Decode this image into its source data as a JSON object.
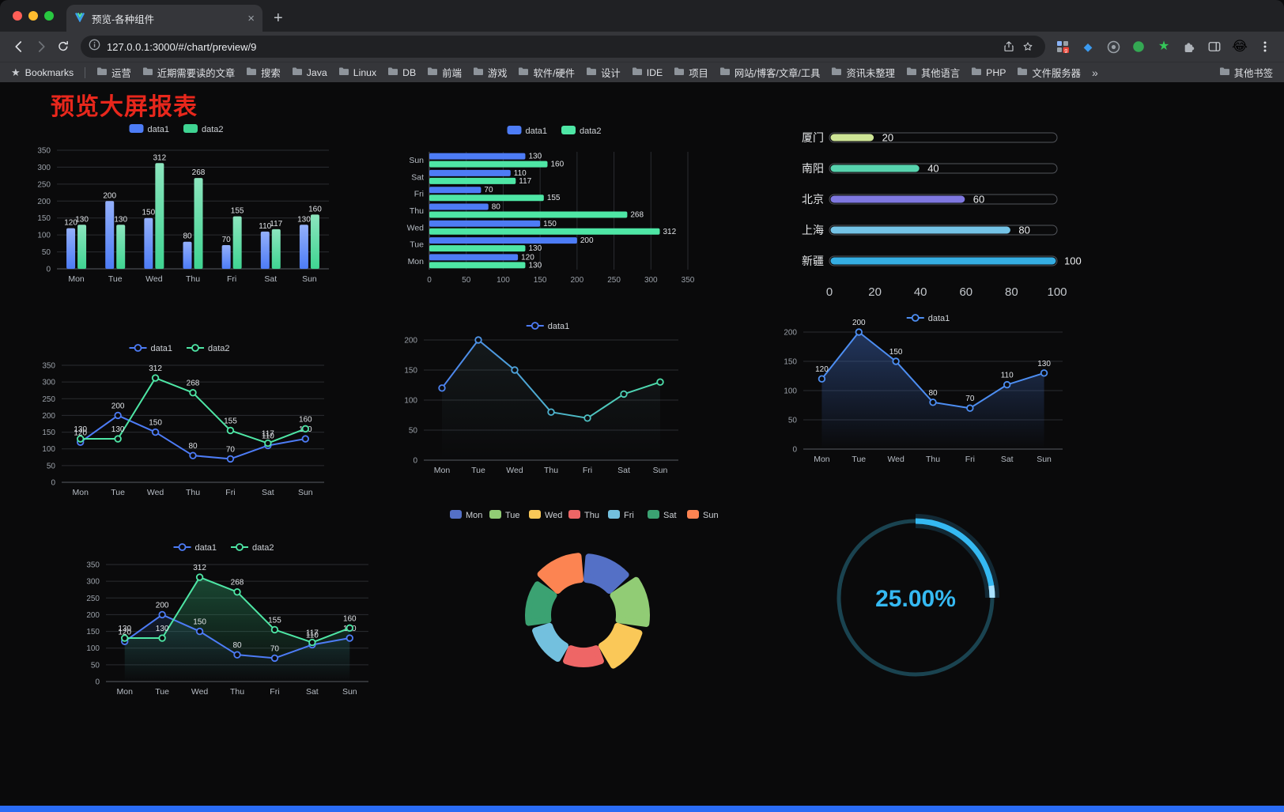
{
  "browser": {
    "tab": {
      "title": "预览-各种组件",
      "close": "×",
      "new_tab": "+"
    },
    "address": {
      "url": "127.0.0.1:3000/#/chart/preview/9"
    },
    "bookmarks_bar": {
      "bookmarks_label": "Bookmarks",
      "folders": [
        "运营",
        "近期需要读的文章",
        "搜索",
        "Java",
        "Linux",
        "DB",
        "前端",
        "游戏",
        "软件/硬件",
        "设计",
        "IDE",
        "项目",
        "网站/博客/文章/工具",
        "资讯未整理",
        "其他语言",
        "PHP",
        "文件服务器"
      ],
      "overflow": "»",
      "other_bookmarks": "其他书签"
    }
  },
  "page": {
    "title": "预览大屏报表",
    "title_color": "#e8271c",
    "background": "#0a0a0b",
    "bottom_bar_color": "#2a6cf5"
  },
  "chart_data": [
    {
      "type": "bar",
      "categories": [
        "Mon",
        "Tue",
        "Wed",
        "Thu",
        "Fri",
        "Sat",
        "Sun"
      ],
      "series": [
        {
          "name": "data1",
          "values": [
            120,
            200,
            150,
            80,
            70,
            110,
            130
          ],
          "color": "#4d7cf6"
        },
        {
          "name": "data2",
          "values": [
            130,
            130,
            312,
            268,
            155,
            117,
            160
          ],
          "color": "#3fd492"
        }
      ],
      "ylim": [
        0,
        350
      ],
      "ytick": 50,
      "show_labels": true,
      "legend_position": "top",
      "grid": true
    },
    {
      "type": "hbar",
      "categories": [
        "Mon",
        "Tue",
        "Wed",
        "Thu",
        "Fri",
        "Sat",
        "Sun"
      ],
      "series": [
        {
          "name": "data1",
          "values": [
            120,
            200,
            150,
            80,
            70,
            110,
            130
          ],
          "color": "#4d7cf6"
        },
        {
          "name": "data2",
          "values": [
            130,
            130,
            312,
            268,
            155,
            117,
            160
          ],
          "color": "#4ee6a5"
        }
      ],
      "xlim": [
        0,
        350
      ],
      "xtick": 50,
      "show_labels": true,
      "legend_position": "top",
      "grid": true
    },
    {
      "type": "capsule",
      "rows": [
        {
          "label": "厦门",
          "value": 20,
          "color": "#cde495"
        },
        {
          "label": "南阳",
          "value": 40,
          "color": "#57d3ae"
        },
        {
          "label": "北京",
          "value": 60,
          "color": "#7f78e0"
        },
        {
          "label": "上海",
          "value": 80,
          "color": "#74c3e6"
        },
        {
          "label": "新疆",
          "value": 100,
          "color": "#35aee3"
        }
      ],
      "xlim": [
        0,
        100
      ],
      "xticks": [
        0,
        20,
        40,
        60,
        80,
        100
      ]
    },
    {
      "type": "line",
      "categories": [
        "Mon",
        "Tue",
        "Wed",
        "Thu",
        "Fri",
        "Sat",
        "Sun"
      ],
      "series": [
        {
          "name": "data1",
          "values": [
            120,
            200,
            150,
            80,
            70,
            110,
            130
          ],
          "color": "#4d7cf6"
        },
        {
          "name": "data2",
          "values": [
            130,
            130,
            312,
            268,
            155,
            117,
            160
          ],
          "color": "#4ee6a5"
        }
      ],
      "ylim": [
        0,
        350
      ],
      "ytick": 50,
      "show_labels": true,
      "legend_position": "top",
      "grid": true
    },
    {
      "type": "line",
      "categories": [
        "Mon",
        "Tue",
        "Wed",
        "Thu",
        "Fri",
        "Sat",
        "Sun"
      ],
      "series": [
        {
          "name": "data1",
          "values": [
            120,
            200,
            150,
            80,
            70,
            110,
            130
          ],
          "gradient": [
            "#4d7cf6",
            "#4ee6a5"
          ],
          "area_color": "#86c9d8",
          "area_opacity": 0.08
        }
      ],
      "ylim": [
        0,
        200
      ],
      "ytick": 50,
      "show_labels": false,
      "legend_position": "top",
      "grid": true
    },
    {
      "type": "line",
      "categories": [
        "Mon",
        "Tue",
        "Wed",
        "Thu",
        "Fri",
        "Sat",
        "Sun"
      ],
      "series": [
        {
          "name": "data1",
          "values": [
            120,
            200,
            150,
            80,
            70,
            110,
            130
          ],
          "color": "#4d8ef2",
          "area_color": "#3a62b0",
          "area_opacity": 0.5
        }
      ],
      "ylim": [
        0,
        200
      ],
      "ytick": 50,
      "show_labels": true,
      "legend_position": "top",
      "grid": true
    },
    {
      "type": "line",
      "categories": [
        "Mon",
        "Tue",
        "Wed",
        "Thu",
        "Fri",
        "Sat",
        "Sun"
      ],
      "series": [
        {
          "name": "data1",
          "values": [
            120,
            200,
            150,
            80,
            70,
            110,
            130
          ],
          "color": "#4d7cf6",
          "area_color": "#3a62b0",
          "area_opacity": 0.2
        },
        {
          "name": "data2",
          "values": [
            130,
            130,
            312,
            268,
            155,
            117,
            160
          ],
          "color": "#4ee6a5",
          "area_color": "#2f9e6a",
          "area_opacity": 0.42
        }
      ],
      "ylim": [
        0,
        350
      ],
      "ytick": 50,
      "show_labels": true,
      "legend_position": "top",
      "grid": true
    },
    {
      "type": "pie",
      "slices": [
        {
          "label": "Mon",
          "color": "#5470c6"
        },
        {
          "label": "Tue",
          "color": "#91cc75"
        },
        {
          "label": "Wed",
          "color": "#fac858"
        },
        {
          "label": "Thu",
          "color": "#ee6666"
        },
        {
          "label": "Fri",
          "color": "#73c0de"
        },
        {
          "label": "Sat",
          "color": "#3ba272"
        },
        {
          "label": "Sun",
          "color": "#fc8452"
        }
      ],
      "inner_radius": 45,
      "outer_radii": [
        74,
        80,
        74,
        62,
        64,
        70,
        75
      ],
      "legend_position": "top"
    },
    {
      "type": "gauge",
      "value_label": "25.00%",
      "percent": 25,
      "color": "#35b9f2",
      "track_color": "#1a4350"
    }
  ]
}
